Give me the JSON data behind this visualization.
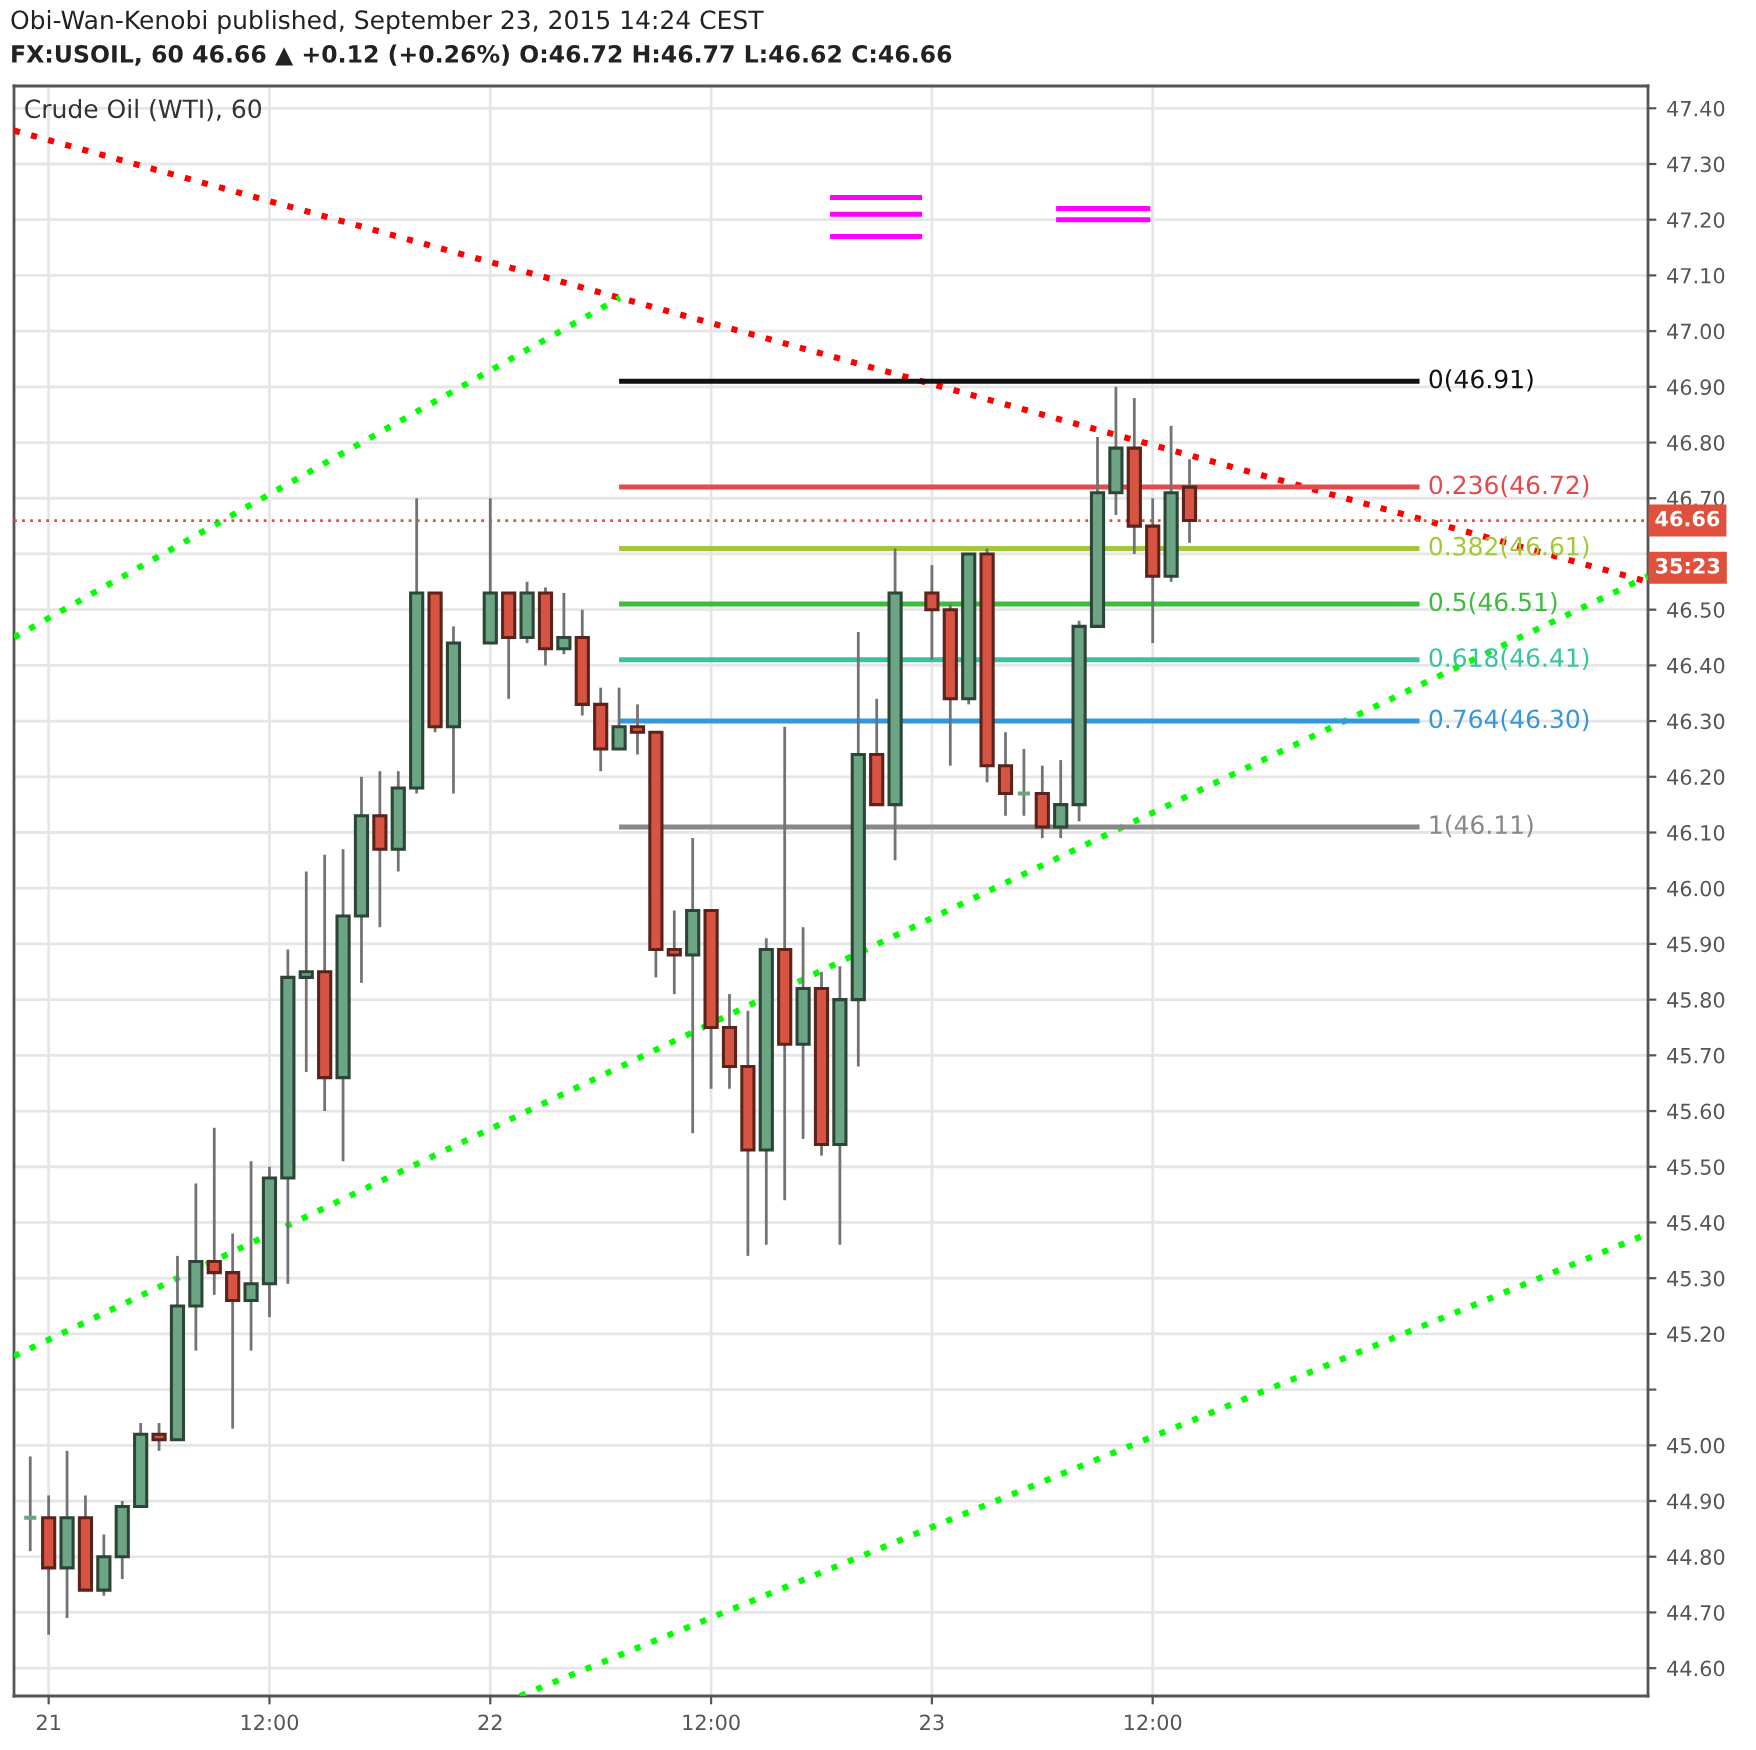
{
  "chart_data": {
    "type": "candlestick",
    "title": "Obi-Wan-Kenobi published, September 23, 2015 14:24 CEST",
    "subtitle": "FX:USOIL, 60 46.66 ▲ +0.12 (+0.26%) O:46.72 H:46.77 L:46.62 C:46.66",
    "x": [
      "2015-09-20T23:00",
      "2015-09-21T00:00",
      "2015-09-21T01:00",
      "2015-09-21T02:00",
      "2015-09-21T03:00",
      "2015-09-21T04:00",
      "2015-09-21T05:00",
      "2015-09-21T06:00",
      "2015-09-21T07:00",
      "2015-09-21T08:00",
      "2015-09-21T09:00",
      "2015-09-21T10:00",
      "2015-09-21T11:00",
      "2015-09-21T12:00",
      "2015-09-21T13:00",
      "2015-09-21T14:00",
      "2015-09-21T15:00",
      "2015-09-21T16:00",
      "2015-09-21T17:00",
      "2015-09-21T18:00",
      "2015-09-21T19:00",
      "2015-09-21T20:00",
      "2015-09-21T21:00",
      "2015-09-21T22:00",
      "2015-09-22T00:00",
      "2015-09-22T01:00",
      "2015-09-22T02:00",
      "2015-09-22T03:00",
      "2015-09-22T04:00",
      "2015-09-22T05:00",
      "2015-09-22T06:00",
      "2015-09-22T07:00",
      "2015-09-22T08:00",
      "2015-09-22T09:00",
      "2015-09-22T10:00",
      "2015-09-22T11:00",
      "2015-09-22T12:00",
      "2015-09-22T13:00",
      "2015-09-22T14:00",
      "2015-09-22T15:00",
      "2015-09-22T16:00",
      "2015-09-22T17:00",
      "2015-09-22T18:00",
      "2015-09-22T19:00",
      "2015-09-22T20:00",
      "2015-09-22T21:00",
      "2015-09-22T22:00",
      "2015-09-23T00:00",
      "2015-09-23T01:00",
      "2015-09-23T02:00",
      "2015-09-23T03:00",
      "2015-09-23T04:00",
      "2015-09-23T05:00",
      "2015-09-23T06:00",
      "2015-09-23T07:00",
      "2015-09-23T08:00",
      "2015-09-23T09:00",
      "2015-09-23T10:00",
      "2015-09-23T11:00",
      "2015-09-23T12:00",
      "2015-09-23T13:00",
      "2015-09-23T14:00"
    ],
    "ohlc": [
      [
        44.87,
        44.98,
        44.81,
        44.87
      ],
      [
        44.87,
        44.91,
        44.66,
        44.78
      ],
      [
        44.78,
        44.99,
        44.69,
        44.87
      ],
      [
        44.87,
        44.91,
        44.74,
        44.74
      ],
      [
        44.74,
        44.84,
        44.73,
        44.8
      ],
      [
        44.8,
        44.9,
        44.76,
        44.89
      ],
      [
        44.89,
        45.04,
        44.89,
        45.02
      ],
      [
        45.02,
        45.04,
        44.99,
        45.01
      ],
      [
        45.01,
        45.34,
        45.01,
        45.25
      ],
      [
        45.25,
        45.47,
        45.17,
        45.33
      ],
      [
        45.33,
        45.57,
        45.27,
        45.31
      ],
      [
        45.31,
        45.38,
        45.03,
        45.26
      ],
      [
        45.26,
        45.51,
        45.17,
        45.29
      ],
      [
        45.29,
        45.5,
        45.23,
        45.48
      ],
      [
        45.48,
        45.89,
        45.29,
        45.84
      ],
      [
        45.84,
        46.03,
        45.67,
        45.85
      ],
      [
        45.85,
        46.06,
        45.6,
        45.66
      ],
      [
        45.66,
        46.07,
        45.51,
        45.95
      ],
      [
        45.95,
        46.2,
        45.83,
        46.13
      ],
      [
        46.13,
        46.21,
        45.93,
        46.07
      ],
      [
        46.07,
        46.21,
        46.03,
        46.18
      ],
      [
        46.18,
        46.7,
        46.17,
        46.53
      ],
      [
        46.53,
        46.53,
        46.28,
        46.29
      ],
      [
        46.29,
        46.47,
        46.17,
        46.44
      ],
      [
        46.44,
        46.7,
        46.44,
        46.53
      ],
      [
        46.53,
        46.53,
        46.34,
        46.45
      ],
      [
        46.45,
        46.55,
        46.44,
        46.53
      ],
      [
        46.53,
        46.54,
        46.4,
        46.43
      ],
      [
        46.43,
        46.53,
        46.42,
        46.45
      ],
      [
        46.45,
        46.5,
        46.31,
        46.33
      ],
      [
        46.33,
        46.36,
        46.21,
        46.25
      ],
      [
        46.25,
        46.36,
        46.25,
        46.29
      ],
      [
        46.29,
        46.33,
        46.24,
        46.28
      ],
      [
        46.28,
        46.28,
        45.84,
        45.89
      ],
      [
        45.89,
        45.96,
        45.81,
        45.88
      ],
      [
        45.88,
        46.09,
        45.56,
        45.96
      ],
      [
        45.96,
        45.96,
        45.64,
        45.75
      ],
      [
        45.75,
        45.81,
        45.64,
        45.68
      ],
      [
        45.68,
        45.78,
        45.34,
        45.53
      ],
      [
        45.53,
        45.91,
        45.36,
        45.89
      ],
      [
        45.89,
        46.29,
        45.44,
        45.72
      ],
      [
        45.72,
        45.93,
        45.55,
        45.82
      ],
      [
        45.82,
        45.85,
        45.52,
        45.54
      ],
      [
        45.54,
        45.86,
        45.36,
        45.8
      ],
      [
        45.8,
        46.46,
        45.68,
        46.24
      ],
      [
        46.24,
        46.34,
        46.15,
        46.15
      ],
      [
        46.15,
        46.61,
        46.05,
        46.53
      ],
      [
        46.53,
        46.58,
        46.41,
        46.5
      ],
      [
        46.5,
        46.51,
        46.22,
        46.34
      ],
      [
        46.34,
        46.6,
        46.33,
        46.6
      ],
      [
        46.6,
        46.61,
        46.19,
        46.22
      ],
      [
        46.22,
        46.28,
        46.13,
        46.17
      ],
      [
        46.17,
        46.25,
        46.13,
        46.17
      ],
      [
        46.17,
        46.22,
        46.09,
        46.11
      ],
      [
        46.11,
        46.23,
        46.09,
        46.15
      ],
      [
        46.15,
        46.48,
        46.12,
        46.47
      ],
      [
        46.47,
        46.81,
        46.47,
        46.71
      ],
      [
        46.71,
        46.9,
        46.67,
        46.79
      ],
      [
        46.79,
        46.88,
        46.6,
        46.65
      ],
      [
        46.65,
        46.7,
        46.44,
        46.56
      ],
      [
        46.56,
        46.83,
        46.55,
        46.71
      ],
      [
        46.72,
        46.77,
        46.62,
        46.66
      ]
    ],
    "colors": [
      "#6ba583",
      "#d75442",
      "#6ba583",
      "#d75442",
      "#6ba583",
      "#6ba583",
      "#6ba583",
      "#d75442",
      "#6ba583",
      "#6ba583",
      "#d75442",
      "#d75442",
      "#6ba583",
      "#6ba583",
      "#6ba583",
      "#6ba583",
      "#d75442",
      "#6ba583",
      "#6ba583",
      "#d75442",
      "#6ba583",
      "#6ba583",
      "#d75442",
      "#6ba583",
      "#6ba583",
      "#d75442",
      "#6ba583",
      "#d75442",
      "#6ba583",
      "#d75442",
      "#d75442",
      "#6ba583",
      "#d75442",
      "#d75442",
      "#d75442",
      "#6ba583",
      "#d75442",
      "#d75442",
      "#d75442",
      "#6ba583",
      "#d75442",
      "#6ba583",
      "#d75442",
      "#6ba583",
      "#6ba583",
      "#d75442",
      "#6ba583",
      "#d75442",
      "#d75442",
      "#6ba583",
      "#d75442",
      "#d75442",
      "#6ba583",
      "#d75442",
      "#6ba583",
      "#6ba583",
      "#6ba583",
      "#6ba583",
      "#d75442",
      "#d75442",
      "#6ba583",
      "#d75442"
    ],
    "series": [
      {
        "type": "line",
        "x": [
          "2015-09-20T22:07",
          "2015-09-24T14:55"
        ],
        "values": [
          47.36,
          46.55
        ],
        "color": "#ff0000",
        "line_style": "dotted"
      },
      {
        "type": "line",
        "x": [
          "2015-09-20T22:07",
          "2015-09-22T07:03"
        ],
        "values": [
          46.45,
          47.06
        ],
        "color": "#00ff00",
        "line_style": "dotted"
      },
      {
        "type": "line",
        "x": [
          "2015-09-20T22:07",
          "2015-09-24T14:55"
        ],
        "values": [
          45.16,
          46.56
        ],
        "color": "#00ff00",
        "line_style": "dotted"
      },
      {
        "type": "line",
        "x": [
          "2015-09-22T01:37",
          "2015-09-24T14:55"
        ],
        "values": [
          44.55,
          45.38
        ],
        "color": "#00ff00",
        "line_style": "dotted"
      },
      {
        "type": "line",
        "x": [
          "2015-09-22T07:00",
          "2015-09-24T02:30"
        ],
        "values": [
          46.91,
          46.91
        ],
        "color": "#111111",
        "line_style": "solid"
      },
      {
        "type": "line",
        "x": [
          "2015-09-22T07:00",
          "2015-09-24T02:30"
        ],
        "values": [
          46.72,
          46.72
        ],
        "color": "#e34a4a",
        "line_style": "solid"
      },
      {
        "type": "line",
        "x": [
          "2015-09-22T07:00",
          "2015-09-24T02:30"
        ],
        "values": [
          46.61,
          46.61
        ],
        "color": "#a2c83a",
        "line_style": "solid"
      },
      {
        "type": "line",
        "x": [
          "2015-09-22T07:00",
          "2015-09-24T02:30"
        ],
        "values": [
          46.51,
          46.51
        ],
        "color": "#3dbb3d",
        "line_style": "solid"
      },
      {
        "type": "line",
        "x": [
          "2015-09-22T07:00",
          "2015-09-24T02:30"
        ],
        "values": [
          46.41,
          46.41
        ],
        "color": "#36c4a0",
        "line_style": "solid"
      },
      {
        "type": "line",
        "x": [
          "2015-09-22T07:00",
          "2015-09-24T02:30"
        ],
        "values": [
          46.3,
          46.3
        ],
        "color": "#3598dc",
        "line_style": "solid"
      },
      {
        "type": "line",
        "x": [
          "2015-09-22T07:00",
          "2015-09-24T02:30"
        ],
        "values": [
          46.11,
          46.11
        ],
        "color": "#888888",
        "line_style": "solid"
      },
      {
        "type": "line",
        "x": [
          "2015-09-22T18:28",
          "2015-09-22T23:28"
        ],
        "values": [
          47.24,
          47.24
        ],
        "color": "#ff00ff",
        "line_style": "solid"
      },
      {
        "type": "line",
        "x": [
          "2015-09-22T18:28",
          "2015-09-22T23:28"
        ],
        "values": [
          47.21,
          47.21
        ],
        "color": "#ff00ff",
        "line_style": "solid"
      },
      {
        "type": "line",
        "x": [
          "2015-09-22T18:28",
          "2015-09-22T23:28"
        ],
        "values": [
          47.17,
          47.17
        ],
        "color": "#ff00ff",
        "line_style": "solid"
      },
      {
        "type": "line",
        "x": [
          "2015-09-23T06:45",
          "2015-09-23T11:52"
        ],
        "values": [
          47.22,
          47.22
        ],
        "color": "#ff00ff",
        "line_style": "solid"
      },
      {
        "type": "line",
        "x": [
          "2015-09-23T06:45",
          "2015-09-23T11:52"
        ],
        "values": [
          47.2,
          47.2
        ],
        "color": "#ff00ff",
        "line_style": "solid"
      }
    ],
    "ref_lines": [
      {
        "axis": "y",
        "value": 46.66,
        "label": "46.66",
        "color": "#e0513d",
        "line_style": "dotted"
      }
    ],
    "annotations": [
      "Crude Oil (WTI), 60",
      "35:23",
      {
        "text": "0(46.91)",
        "x": "2015-09-24T02:30",
        "y": 46.91
      },
      {
        "text": "0.236(46.72)",
        "x": "2015-09-24T02:30",
        "y": 46.72
      },
      {
        "text": "0.382(46.61)",
        "x": "2015-09-24T02:30",
        "y": 46.61
      },
      {
        "text": "0.5(46.51)",
        "x": "2015-09-24T02:30",
        "y": 46.51
      },
      {
        "text": "0.618(46.41)",
        "x": "2015-09-24T02:30",
        "y": 46.41
      },
      {
        "text": "0.764(46.30)",
        "x": "2015-09-24T02:30",
        "y": 46.3
      },
      {
        "text": "1(46.11)",
        "x": "2015-09-24T02:30",
        "y": 46.11
      }
    ],
    "xlim": [
      "2015-09-20T22:07",
      "2015-09-24T14:55"
    ],
    "xticks": [
      {
        "value": "2015-09-21T00:00",
        "label": "21"
      },
      {
        "value": "2015-09-21T12:00",
        "label": "12:00"
      },
      {
        "value": "2015-09-22T00:00",
        "label": "22"
      },
      {
        "value": "2015-09-22T12:00",
        "label": "12:00"
      },
      {
        "value": "2015-09-23T00:00",
        "label": "23"
      },
      {
        "value": "2015-09-23T12:00",
        "label": "12:00"
      }
    ],
    "ylim": [
      44.55,
      47.44
    ],
    "yticks": [
      {
        "value": 44.6,
        "label": "44.60"
      },
      {
        "value": 44.7,
        "label": "44.70"
      },
      {
        "value": 44.8,
        "label": "44.80"
      },
      {
        "value": 44.9,
        "label": "44.90"
      },
      {
        "value": 45.0,
        "label": "45.00"
      },
      {
        "value": 45.1,
        "label": null
      },
      {
        "value": 45.2,
        "label": "45.20"
      },
      {
        "value": 45.3,
        "label": "45.30"
      },
      {
        "value": 45.4,
        "label": "45.40"
      },
      {
        "value": 45.5,
        "label": "45.50"
      },
      {
        "value": 45.6,
        "label": "45.60"
      },
      {
        "value": 45.7,
        "label": "45.70"
      },
      {
        "value": 45.8,
        "label": "45.80"
      },
      {
        "value": 45.9,
        "label": "45.90"
      },
      {
        "value": 46.0,
        "label": "46.00"
      },
      {
        "value": 46.1,
        "label": "46.10"
      },
      {
        "value": 46.2,
        "label": "46.20"
      },
      {
        "value": 46.3,
        "label": "46.30"
      },
      {
        "value": 46.4,
        "label": "46.40"
      },
      {
        "value": 46.5,
        "label": "46.50"
      },
      {
        "value": 46.6,
        "label": null
      },
      {
        "value": 46.7,
        "label": "46.70"
      },
      {
        "value": 46.8,
        "label": "46.80"
      },
      {
        "value": 46.9,
        "label": "46.90"
      },
      {
        "value": 47.0,
        "label": "47.00"
      },
      {
        "value": 47.1,
        "label": "47.10"
      },
      {
        "value": 47.2,
        "label": "47.20"
      },
      {
        "value": 47.3,
        "label": "47.30"
      },
      {
        "value": 47.4,
        "label": "47.40"
      }
    ],
    "grid": true
  }
}
